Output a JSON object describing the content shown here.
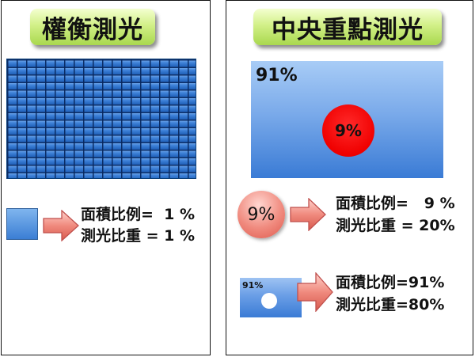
{
  "left_panel": {
    "title": "權衡測光",
    "area_ratio_line": "面積比例=  1 %",
    "metering_weight_line": "測光比重 = 1 %"
  },
  "right_panel": {
    "title": "中央重點測光",
    "big_rect_percent": "91%",
    "center_circle_percent": "9%",
    "pink_circle_percent": "9%",
    "row1_area_line": "面積比例=   9 %",
    "row1_weight_line": "測光比重 = 20%",
    "small_rect_percent": "91%",
    "row2_area_line": "面積比例=91%",
    "row2_weight_line": "測光比重=80%"
  },
  "colors": {
    "title_green": "#b9e36a",
    "grid_blue": "#2d6fc8",
    "arrow_pink": "#f08a7e",
    "center_red": "#f00000"
  },
  "icons": [
    "right-arrow-icon"
  ]
}
